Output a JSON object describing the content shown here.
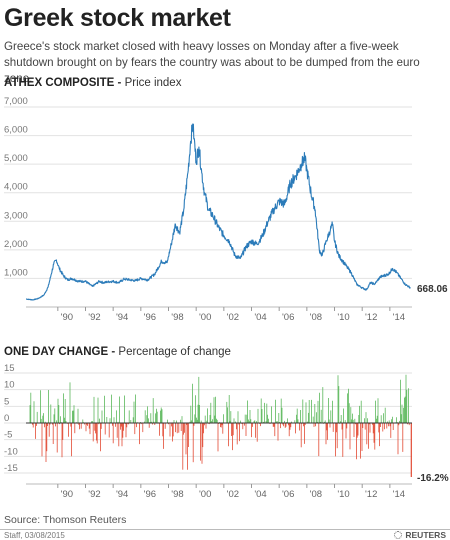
{
  "header": {
    "title": "Greek stock market",
    "subtitle": "Greece's stock market closed with heavy losses on Monday after a five-week shutdown brought on by fears the country was about to be dumped from the euro zone."
  },
  "chart_data": [
    {
      "type": "line",
      "title": "ATHEX COMPOSITE",
      "subtitle": "Price index",
      "x_ticks": [
        "'90",
        "'92",
        "'94",
        "'96",
        "'98",
        "'00",
        "'02",
        "'04",
        "'06",
        "'08",
        "'10",
        "'12",
        "'14"
      ],
      "y_ticks": [
        "7,000",
        "6,000",
        "5,000",
        "4,000",
        "3,000",
        "2,000",
        "1,000"
      ],
      "ylim": [
        0,
        7000
      ],
      "xlim": [
        1987.7,
        2015.6
      ],
      "end_label": "668.06",
      "color": "#2b7bb9",
      "series": [
        {
          "x": [
            1987.7,
            1988.2,
            1988.6,
            1989.0,
            1989.3,
            1989.5,
            1989.7,
            1989.9,
            1990.1,
            1990.4,
            1990.7,
            1991.0,
            1991.5,
            1992.0,
            1992.5,
            1993.0,
            1993.3,
            1993.6,
            1994.0,
            1994.4,
            1994.8,
            1995.2,
            1995.6,
            1996.0,
            1996.5,
            1997.0,
            1997.5,
            1997.9,
            1998.2,
            1998.5,
            1998.8,
            1999.1,
            1999.4,
            1999.6,
            1999.75,
            1999.85,
            2000.0,
            2000.2,
            2000.4,
            2000.6,
            2000.9,
            2001.2,
            2001.6,
            2002.0,
            2002.4,
            2002.8,
            2003.2,
            2003.6,
            2004.0,
            2004.4,
            2004.8,
            2005.2,
            2005.6,
            2006.0,
            2006.4,
            2006.8,
            2007.2,
            2007.6,
            2007.85,
            2008.0,
            2008.3,
            2008.6,
            2008.9,
            2009.1,
            2009.4,
            2009.7,
            2009.85,
            2010.0,
            2010.3,
            2010.6,
            2010.9,
            2011.2,
            2011.6,
            2011.9,
            2012.3,
            2012.6,
            2012.9,
            2013.3,
            2013.6,
            2013.9,
            2014.2,
            2014.5,
            2014.8,
            2015.1,
            2015.5
          ],
          "y": [
            280,
            250,
            300,
            420,
            700,
            1100,
            1500,
            1650,
            1350,
            1100,
            950,
            1000,
            900,
            900,
            720,
            900,
            850,
            880,
            900,
            850,
            980,
            950,
            920,
            1000,
            950,
            1150,
            1600,
            1550,
            2200,
            2900,
            2600,
            3400,
            4700,
            5800,
            6400,
            5900,
            5100,
            5600,
            4700,
            4000,
            3400,
            3200,
            2800,
            2500,
            2300,
            1800,
            1700,
            2100,
            2300,
            2200,
            2500,
            3000,
            3400,
            3700,
            3600,
            4300,
            4600,
            5000,
            5200,
            4800,
            4000,
            3400,
            2000,
            1800,
            2300,
            2700,
            2900,
            2300,
            1800,
            1600,
            1400,
            1200,
            800,
            700,
            600,
            850,
            800,
            1050,
            1100,
            1150,
            1350,
            1200,
            1000,
            800,
            668
          ]
        }
      ]
    },
    {
      "type": "bar",
      "title": "ONE DAY CHANGE",
      "subtitle": "Percentage of change",
      "x_ticks": [
        "'90",
        "'92",
        "'94",
        "'96",
        "'98",
        "'00",
        "'02",
        "'04",
        "'06",
        "'08",
        "'10",
        "'12",
        "'14"
      ],
      "y_ticks": [
        "15",
        "10",
        "5",
        "0",
        "-5",
        "-10",
        "-15"
      ],
      "ylim": [
        -16.5,
        15
      ],
      "xlim": [
        1987.7,
        2015.6
      ],
      "end_label": "-16.2%",
      "positive_color": "#5cb85c",
      "negative_color": "#e24a33",
      "final_value": -16.2
    }
  ],
  "footer": {
    "source": "Source: Thomson Reuters",
    "credit": "Staff, 03/08/2015",
    "brand": "REUTERS"
  }
}
